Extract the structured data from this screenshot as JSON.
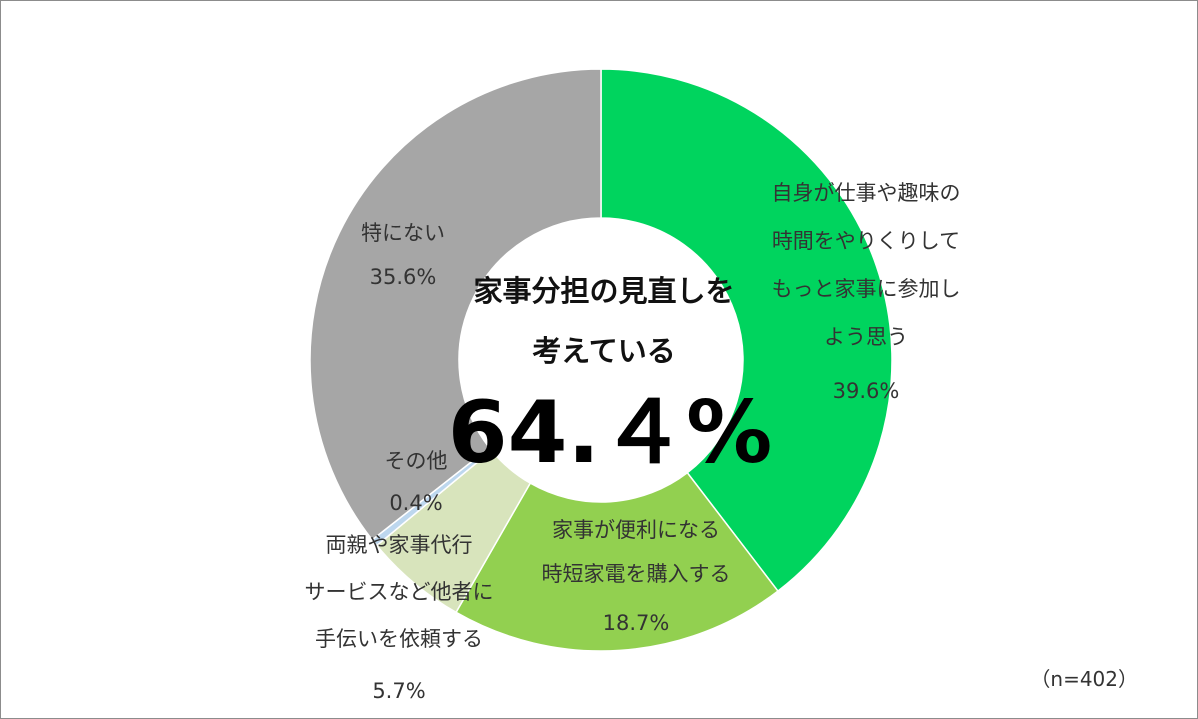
{
  "chart_data": {
    "type": "donut",
    "categories": [
      "自身が仕事や趣味の時間をやりくりしてもっと家事に参加しよう思う",
      "家事が便利になる時短家電を購入する",
      "両親や家事代行サービスなど他者に手伝いを依頼する",
      "その他",
      "特にない"
    ],
    "values": [
      39.6,
      18.7,
      5.7,
      0.4,
      35.6
    ],
    "colors": [
      "#00d45e",
      "#92d050",
      "#d8e4bc",
      "#bdd7ee",
      "#a6a6a6"
    ],
    "labels": [
      {
        "lines": [
          "自身が仕事や趣味の",
          "時間をやりくりして",
          "もっと家事に参加し",
          "よう思う"
        ],
        "value_text": "39.6%"
      },
      {
        "lines": [
          "家事が便利になる",
          "時短家電を購入する"
        ],
        "value_text": "18.7%"
      },
      {
        "lines": [
          "両親や家事代行",
          "サービスなど他者に",
          "手伝いを依頼する"
        ],
        "value_text": "5.7%"
      },
      {
        "lines": [
          "その他"
        ],
        "value_text": "0.4%"
      },
      {
        "lines": [
          "特にない"
        ],
        "value_text": "35.6%"
      }
    ],
    "center_text": {
      "line1": "家事分担の見直しを",
      "line2": "考えている",
      "big": "64.４%"
    },
    "note": "（n=402）"
  }
}
